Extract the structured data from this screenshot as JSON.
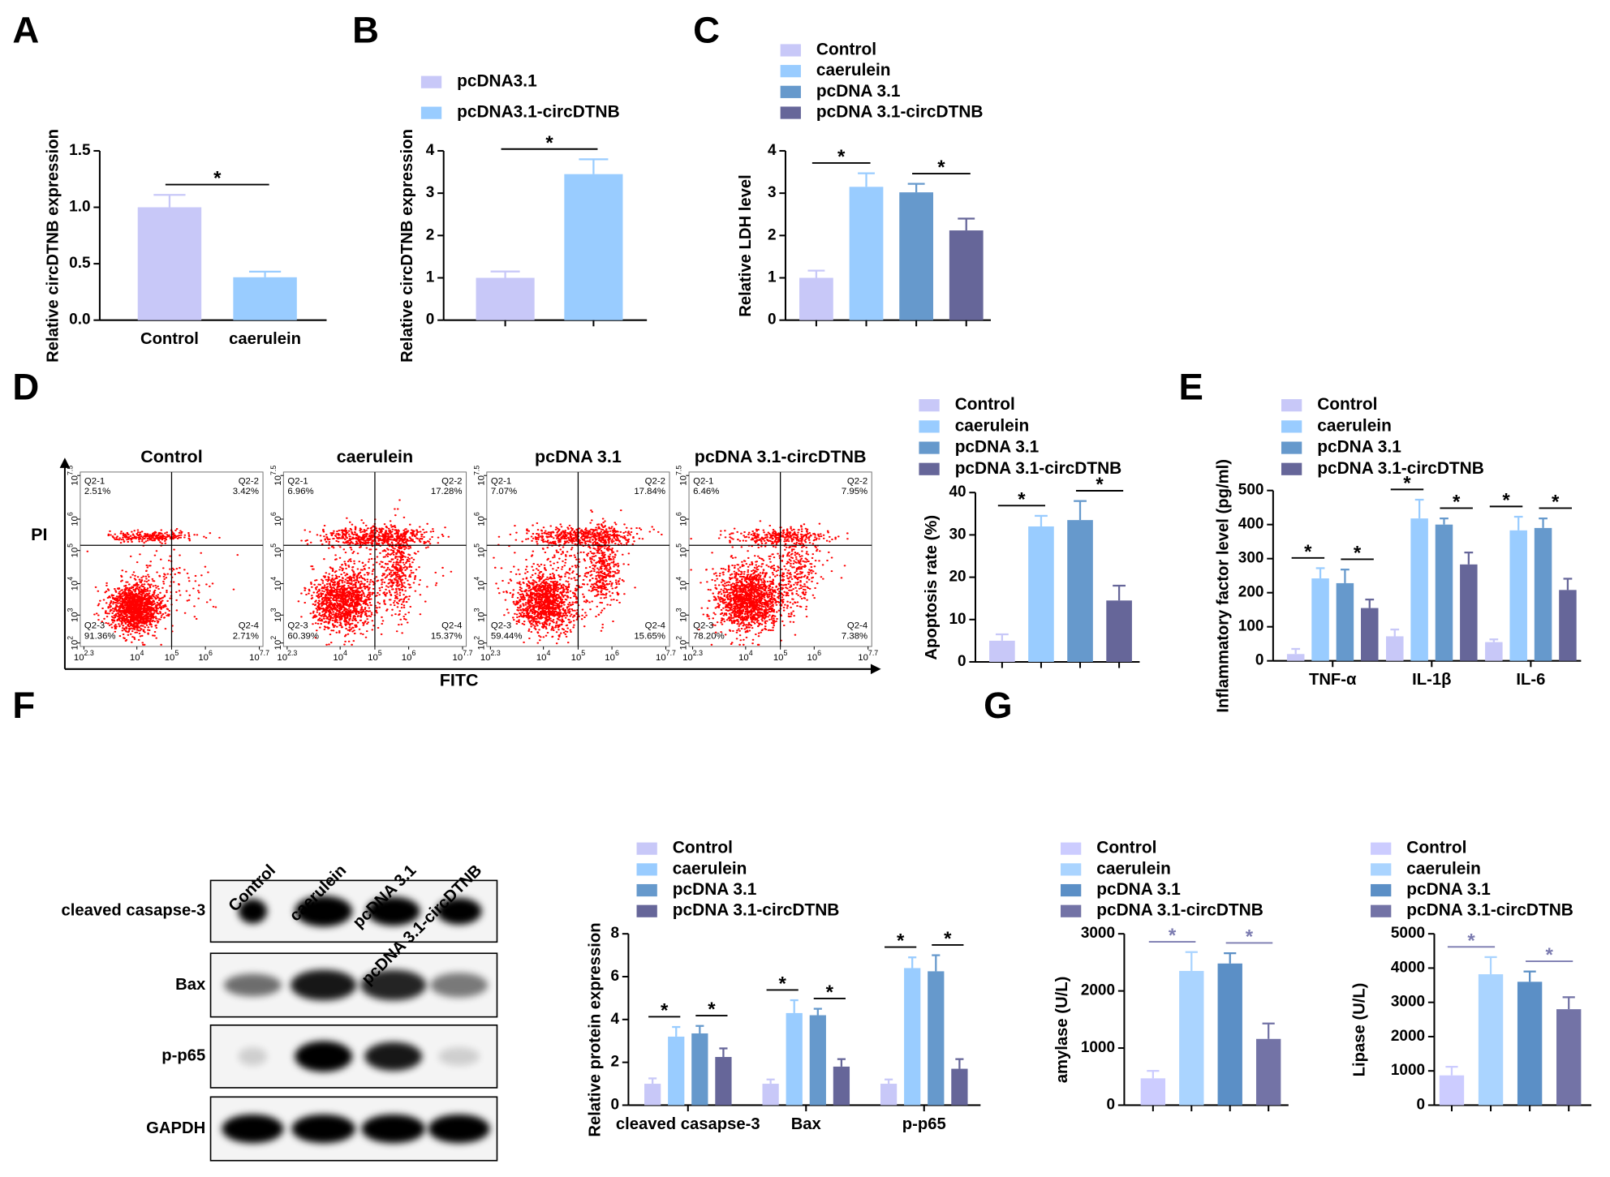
{
  "panels": [
    "A",
    "B",
    "C",
    "D",
    "E",
    "F",
    "G"
  ],
  "chart_data": [
    {
      "type": "bar",
      "y_label": "Relative circDTNB expression",
      "categories": [
        "Control",
        "caerulein"
      ],
      "values": [
        1.0,
        0.38
      ],
      "errors": [
        0.11,
        0.05
      ],
      "colors": [
        "#c8c8f8",
        "#99ccff"
      ],
      "ylim": [
        0,
        1.5
      ],
      "yticks": [
        {
          "value": 0,
          "label": "0.0"
        },
        0.5,
        {
          "value": 1,
          "label": "1.0"
        },
        1.5
      ],
      "annotations": [
        "*"
      ]
    },
    {
      "type": "bar",
      "y_label": "Relative circDTNB expression",
      "series": [
        {
          "name": "pcDNA3.1",
          "color": "#c8c8f8",
          "values": [
            1.0
          ],
          "errors": [
            0.15
          ]
        },
        {
          "name": "pcDNA3.1-circDTNB",
          "color": "#99ccff",
          "values": [
            3.45
          ],
          "errors": [
            0.35
          ]
        }
      ],
      "ylim": [
        0,
        4
      ],
      "yticks": [
        0,
        1,
        2,
        3,
        4
      ],
      "annotations": [
        "*"
      ]
    },
    {
      "type": "bar",
      "y_label": "Relative LDH level",
      "series": [
        {
          "name": "Control",
          "color": "#c8c8f8",
          "values": [
            1.0
          ],
          "errors": [
            0.17
          ]
        },
        {
          "name": "caerulein",
          "color": "#99ccff",
          "values": [
            3.15
          ],
          "errors": [
            0.32
          ]
        },
        {
          "name": "pcDNA 3.1",
          "color": "#6699cc",
          "values": [
            3.02
          ],
          "errors": [
            0.2
          ]
        },
        {
          "name": "pcDNA 3.1-circDTNB",
          "color": "#666699",
          "values": [
            2.12
          ],
          "errors": [
            0.28
          ]
        }
      ],
      "ylim": [
        0,
        4
      ],
      "yticks": [
        0,
        1,
        2,
        3,
        4
      ],
      "annotations": [
        "*",
        "*"
      ]
    },
    {
      "type": "bar",
      "y_label": "Apoptosis rate (%)",
      "series": [
        {
          "name": "Control",
          "color": "#c8c8f8",
          "values": [
            5
          ],
          "errors": [
            1.5
          ]
        },
        {
          "name": "caerulein",
          "color": "#99ccff",
          "values": [
            32
          ],
          "errors": [
            2.5
          ]
        },
        {
          "name": "pcDNA 3.1",
          "color": "#6699cc",
          "values": [
            33.5
          ],
          "errors": [
            4.5
          ]
        },
        {
          "name": "pcDNA 3.1-circDTNB",
          "color": "#666699",
          "values": [
            14.5
          ],
          "errors": [
            3.5
          ]
        }
      ],
      "ylim": [
        0,
        40
      ],
      "yticks": [
        0,
        10,
        20,
        30,
        40
      ],
      "annotations": [
        "*",
        "*"
      ]
    },
    {
      "type": "bar",
      "y_label": "Inflammatory factor level (pg/ml)",
      "categories": [
        "TNF-α",
        "IL-1β",
        "IL-6"
      ],
      "series": [
        {
          "name": "Control",
          "color": "#c8c8f8",
          "values": [
            20,
            72,
            55
          ],
          "errors": [
            15,
            20,
            8
          ]
        },
        {
          "name": "caerulein",
          "color": "#99ccff",
          "values": [
            242,
            418,
            383
          ],
          "errors": [
            30,
            55,
            40
          ]
        },
        {
          "name": "pcDNA 3.1",
          "color": "#6699cc",
          "values": [
            228,
            400,
            390
          ],
          "errors": [
            40,
            18,
            28
          ]
        },
        {
          "name": "pcDNA 3.1-circDTNB",
          "color": "#666699",
          "values": [
            155,
            283,
            208
          ],
          "errors": [
            25,
            35,
            33
          ]
        }
      ],
      "ylim": [
        0,
        500
      ],
      "yticks": [
        0,
        100,
        200,
        300,
        400,
        500
      ],
      "annotations": [
        "*",
        "*",
        "*",
        "*",
        "*",
        "*"
      ]
    },
    {
      "type": "bar",
      "y_label": "Relative protein expression",
      "categories": [
        "cleaved casapse-3",
        "Bax",
        "p-p65"
      ],
      "series": [
        {
          "name": "Control",
          "color": "#c8c8f8",
          "values": [
            1.0,
            1.0,
            1.0
          ],
          "errors": [
            0.25,
            0.2,
            0.2
          ]
        },
        {
          "name": "caerulein",
          "color": "#99ccff",
          "values": [
            3.2,
            4.3,
            6.4
          ],
          "errors": [
            0.45,
            0.6,
            0.5
          ]
        },
        {
          "name": "pcDNA 3.1",
          "color": "#6699cc",
          "values": [
            3.35,
            4.2,
            6.25
          ],
          "errors": [
            0.35,
            0.3,
            0.75
          ]
        },
        {
          "name": "pcDNA 3.1-circDTNB",
          "color": "#666699",
          "values": [
            2.25,
            1.8,
            1.7
          ],
          "errors": [
            0.4,
            0.35,
            0.45
          ]
        }
      ],
      "ylim": [
        0,
        8
      ],
      "yticks": [
        0,
        2,
        4,
        6,
        8
      ],
      "annotations": [
        "*",
        "*",
        "*",
        "*",
        "*",
        "*"
      ]
    },
    {
      "type": "bar",
      "y_label": "amylase (U/L)",
      "series": [
        {
          "name": "Control",
          "color": "#ccccff",
          "values": [
            470
          ],
          "errors": [
            130
          ]
        },
        {
          "name": "caerulein",
          "color": "#aad4ff",
          "values": [
            2350
          ],
          "errors": [
            330
          ]
        },
        {
          "name": "pcDNA 3.1",
          "color": "#5b8fc6",
          "values": [
            2480
          ],
          "errors": [
            180
          ]
        },
        {
          "name": "pcDNA 3.1-circDTNB",
          "color": "#7373a6",
          "values": [
            1160
          ],
          "errors": [
            270
          ]
        }
      ],
      "ylim": [
        0,
        3000
      ],
      "yticks": [
        0,
        1000,
        2000,
        3000
      ],
      "annotations": [
        "*",
        "*"
      ],
      "annotation_color": "#7b7bb0"
    },
    {
      "type": "bar",
      "y_label": "Lipase (U/L)",
      "series": [
        {
          "name": "Control",
          "color": "#ccccff",
          "values": [
            870
          ],
          "errors": [
            250
          ]
        },
        {
          "name": "caerulein",
          "color": "#aad4ff",
          "values": [
            3820
          ],
          "errors": [
            500
          ]
        },
        {
          "name": "pcDNA 3.1",
          "color": "#5b8fc6",
          "values": [
            3600
          ],
          "errors": [
            300
          ]
        },
        {
          "name": "pcDNA 3.1-circDTNB",
          "color": "#7373a6",
          "values": [
            2800
          ],
          "errors": [
            350
          ]
        }
      ],
      "ylim": [
        0,
        5000
      ],
      "yticks": [
        0,
        1000,
        2000,
        3000,
        4000,
        5000
      ],
      "annotations": [
        "*",
        "*"
      ],
      "annotation_color": "#7b7bb0"
    }
  ],
  "flow": {
    "x_label": "FITC",
    "y_label": "PI",
    "x_ticks": [
      {
        "base": "10",
        "exp": "2.3"
      },
      {
        "base": "10",
        "exp": "4"
      },
      {
        "base": "10",
        "exp": "5"
      },
      {
        "base": "10",
        "exp": "6"
      },
      {
        "base": "10",
        "exp": "7.7"
      }
    ],
    "y_ticks": [
      {
        "base": "10",
        "exp": "2"
      },
      {
        "base": "10",
        "exp": "3"
      },
      {
        "base": "10",
        "exp": "4"
      },
      {
        "base": "10",
        "exp": "5"
      },
      {
        "base": "10",
        "exp": "6"
      },
      {
        "base": "10",
        "exp": "7.5"
      }
    ],
    "plots": [
      {
        "title": "Control",
        "quadrants": [
          [
            "Q2-1",
            "2.51%"
          ],
          [
            "Q2-2",
            "3.42%"
          ],
          [
            "Q2-3",
            "91.36%"
          ],
          [
            "Q2-4",
            "2.71%"
          ]
        ]
      },
      {
        "title": "caerulein",
        "quadrants": [
          [
            "Q2-1",
            "6.96%"
          ],
          [
            "Q2-2",
            "17.28%"
          ],
          [
            "Q2-3",
            "60.39%"
          ],
          [
            "Q2-4",
            "15.37%"
          ]
        ]
      },
      {
        "title": "pcDNA 3.1",
        "quadrants": [
          [
            "Q2-1",
            "7.07%"
          ],
          [
            "Q2-2",
            "17.84%"
          ],
          [
            "Q2-3",
            "59.44%"
          ],
          [
            "Q2-4",
            "15.65%"
          ]
        ]
      },
      {
        "title": "pcDNA 3.1-circDTNB",
        "quadrants": [
          [
            "Q2-1",
            "6.46%"
          ],
          [
            "Q2-2",
            "7.95%"
          ],
          [
            "Q2-3",
            "78.20%"
          ],
          [
            "Q2-4",
            "7.38%"
          ]
        ]
      }
    ]
  },
  "blot": {
    "lanes": [
      "Control",
      "caerulein",
      "pcDNA 3.1",
      "pcDNA 3.1-circDTNB"
    ],
    "rows": [
      "cleaved casapse-3",
      "Bax",
      "p-p65",
      "GAPDH"
    ]
  }
}
